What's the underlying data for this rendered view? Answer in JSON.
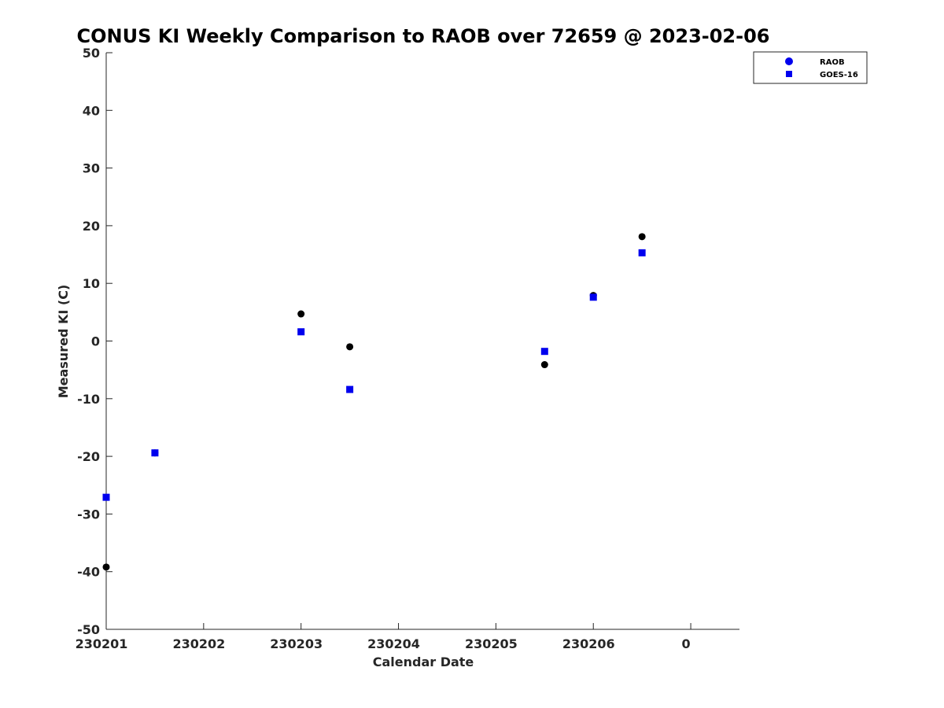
{
  "chart_data": {
    "type": "scatter",
    "title": "CONUS KI Weekly Comparison to RAOB over 72659 @ 2023-02-06",
    "xlabel": "Calendar Date",
    "ylabel": "Measured KI (C)",
    "ylim": [
      -50,
      50
    ],
    "xlim": [
      0,
      6.5
    ],
    "xticks": [
      {
        "pos": 0,
        "label": "230201"
      },
      {
        "pos": 1,
        "label": "230202"
      },
      {
        "pos": 2,
        "label": "230203"
      },
      {
        "pos": 3,
        "label": "230204"
      },
      {
        "pos": 4,
        "label": "230205"
      },
      {
        "pos": 5,
        "label": "230206"
      },
      {
        "pos": 6,
        "label": "0"
      }
    ],
    "yticks": [
      {
        "value": 50,
        "label": "50"
      },
      {
        "value": 40,
        "label": "40"
      },
      {
        "value": 30,
        "label": "30"
      },
      {
        "value": 20,
        "label": "20"
      },
      {
        "value": 10,
        "label": "10"
      },
      {
        "value": 0,
        "label": "0"
      },
      {
        "value": -10,
        "label": "-10"
      },
      {
        "value": -20,
        "label": "-20"
      },
      {
        "value": -30,
        "label": "-30"
      },
      {
        "value": -40,
        "label": "-40"
      },
      {
        "value": -50,
        "label": "-50"
      }
    ],
    "grid": false,
    "legend_position": "top-right",
    "series": [
      {
        "name": "RAOB",
        "marker": "circle",
        "color": "#000000",
        "legend_color": "#0000ee",
        "points": [
          {
            "x": 0.0,
            "y": -39.2
          },
          {
            "x": 0.5,
            "y": -19.4
          },
          {
            "x": 2.0,
            "y": 4.7
          },
          {
            "x": 2.5,
            "y": -1.0
          },
          {
            "x": 4.5,
            "y": -4.1
          },
          {
            "x": 5.0,
            "y": 7.9
          },
          {
            "x": 5.5,
            "y": 18.1
          }
        ]
      },
      {
        "name": "GOES-16",
        "marker": "square",
        "color": "#0000ee",
        "legend_color": "#0000ee",
        "points": [
          {
            "x": 0.0,
            "y": -27.1
          },
          {
            "x": 0.5,
            "y": -19.4
          },
          {
            "x": 2.0,
            "y": 1.6
          },
          {
            "x": 2.5,
            "y": -8.4
          },
          {
            "x": 4.5,
            "y": -1.8
          },
          {
            "x": 5.0,
            "y": 7.6
          },
          {
            "x": 5.5,
            "y": 15.3
          }
        ]
      }
    ]
  }
}
